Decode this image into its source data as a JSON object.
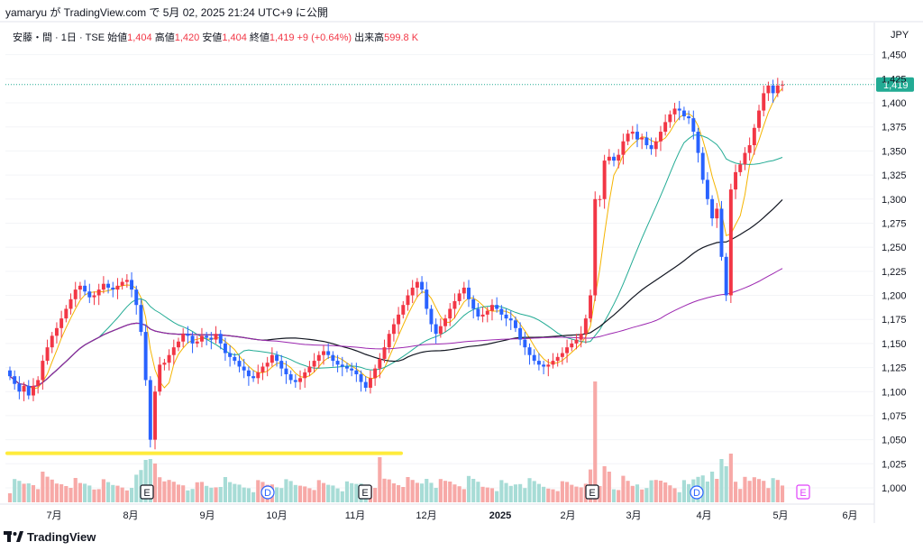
{
  "header": {
    "text": "yamaryu が TradingView.com で 5月 02, 2025 21:24 UTC+9 に公開"
  },
  "legend": {
    "symbol": "安藤・間 · 1日 · TSE",
    "open_label": "始値",
    "open": "1,404",
    "high_label": "高値",
    "high": "1,420",
    "low_label": "安値",
    "low": "1,404",
    "close_label": "終値",
    "close": "1,419",
    "change": "+9 (+0.64%)",
    "volume_label": "出来高",
    "volume": "599.8 K"
  },
  "footer": {
    "brand": "TradingView"
  },
  "colors": {
    "up": "#f23645",
    "down": "#2962ff",
    "ma_short": "#f5b400",
    "ma_mid": "#22ab94",
    "ma_long": "#131722",
    "ma_longest": "#9c27b0",
    "highlight": "#ffeb3b",
    "price_tag": "#22ab94"
  },
  "chart_data": {
    "type": "candlestick",
    "currency": "JPY",
    "last_price": "1,419",
    "ylim": [
      985,
      1460
    ],
    "y_ticks": [
      "1,450",
      "1,425",
      "1,400",
      "1,375",
      "1,350",
      "1,325",
      "1,300",
      "1,275",
      "1,250",
      "1,225",
      "1,200",
      "1,175",
      "1,150",
      "1,125",
      "1,100",
      "1,075",
      "1,050",
      "1,025",
      "1,000"
    ],
    "x_labels": [
      {
        "label": "7月",
        "bold": false
      },
      {
        "label": "8月",
        "bold": false
      },
      {
        "label": "9月",
        "bold": false
      },
      {
        "label": "10月",
        "bold": false
      },
      {
        "label": "11月",
        "bold": false
      },
      {
        "label": "12月",
        "bold": false
      },
      {
        "label": "2025",
        "bold": true
      },
      {
        "label": "2月",
        "bold": false
      },
      {
        "label": "3月",
        "bold": false
      },
      {
        "label": "4月",
        "bold": false
      },
      {
        "label": "5月",
        "bold": false
      },
      {
        "label": "6月",
        "bold": false
      }
    ],
    "highlight_level": 1036,
    "event_markers": [
      "E",
      "D",
      "E",
      "E",
      "D",
      "E"
    ],
    "closes": [
      1116,
      1108,
      1100,
      1106,
      1096,
      1106,
      1112,
      1132,
      1146,
      1158,
      1166,
      1176,
      1186,
      1196,
      1206,
      1210,
      1204,
      1198,
      1200,
      1206,
      1212,
      1208,
      1206,
      1210,
      1214,
      1216,
      1206,
      1190,
      1162,
      1112,
      1050,
      1100,
      1128,
      1130,
      1138,
      1146,
      1152,
      1160,
      1158,
      1150,
      1152,
      1158,
      1156,
      1154,
      1160,
      1150,
      1140,
      1136,
      1132,
      1126,
      1122,
      1116,
      1114,
      1120,
      1126,
      1130,
      1138,
      1132,
      1124,
      1118,
      1112,
      1110,
      1114,
      1120,
      1126,
      1132,
      1138,
      1142,
      1138,
      1132,
      1128,
      1126,
      1124,
      1122,
      1118,
      1110,
      1104,
      1114,
      1124,
      1134,
      1146,
      1160,
      1170,
      1180,
      1190,
      1200,
      1208,
      1214,
      1206,
      1186,
      1170,
      1160,
      1168,
      1176,
      1186,
      1194,
      1202,
      1208,
      1196,
      1186,
      1178,
      1180,
      1184,
      1190,
      1186,
      1180,
      1176,
      1174,
      1166,
      1154,
      1146,
      1138,
      1132,
      1128,
      1126,
      1128,
      1132,
      1136,
      1140,
      1146,
      1150,
      1154,
      1160,
      1176,
      1200,
      1300,
      1300,
      1340,
      1344,
      1340,
      1346,
      1360,
      1368,
      1370,
      1362,
      1364,
      1356,
      1352,
      1360,
      1370,
      1380,
      1388,
      1394,
      1392,
      1386,
      1384,
      1370,
      1348,
      1320,
      1300,
      1280,
      1290,
      1240,
      1200,
      1310,
      1328,
      1336,
      1348,
      1356,
      1374,
      1392,
      1410,
      1418,
      1410,
      1418,
      1419
    ],
    "volume_scale": {
      "base": 1000,
      "max_value": 1108
    }
  }
}
